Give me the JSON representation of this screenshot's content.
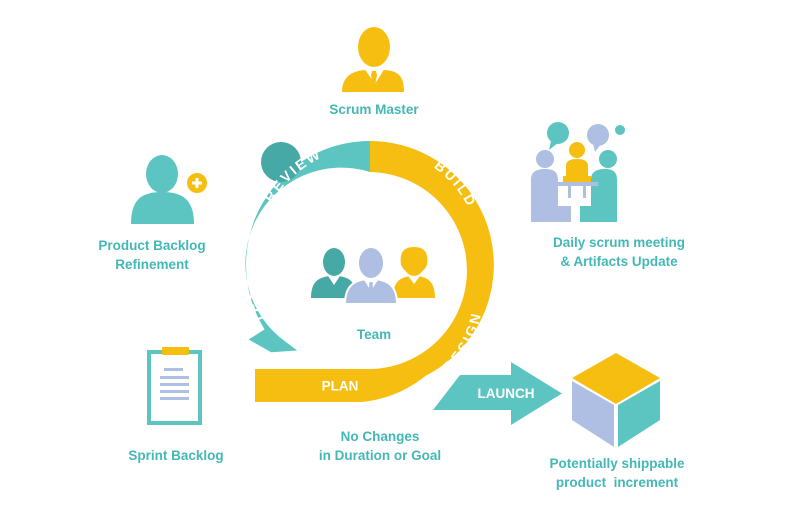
{
  "colors": {
    "teal": "#5cc5c2",
    "teal_dark": "#46a9a6",
    "yellow": "#f7be12",
    "lavender": "#aebfe3",
    "label": "#44b8b6"
  },
  "icons": [
    "person-icon",
    "plus-icon",
    "meeting-icon",
    "team-icon",
    "clipboard-icon",
    "cube-icon"
  ],
  "roles": {
    "scrum_master": "Scrum Master",
    "team": "Team"
  },
  "artifacts": {
    "product_backlog": [
      "Product Backlog",
      "Refinement"
    ],
    "daily_scrum": [
      "Daily scrum meeting",
      "& Artifacts Update"
    ],
    "sprint_backlog": "Sprint Backlog",
    "increment": [
      "Potentially shippable",
      "product  increment"
    ]
  },
  "cycle": {
    "stages": {
      "review": "REVIEW",
      "build": "BUILD",
      "test": "TEST",
      "design": "DESIGN",
      "plan": "PLAN",
      "launch": "LAUNCH"
    },
    "note": [
      "No Changes",
      "in Duration or Goal"
    ]
  }
}
